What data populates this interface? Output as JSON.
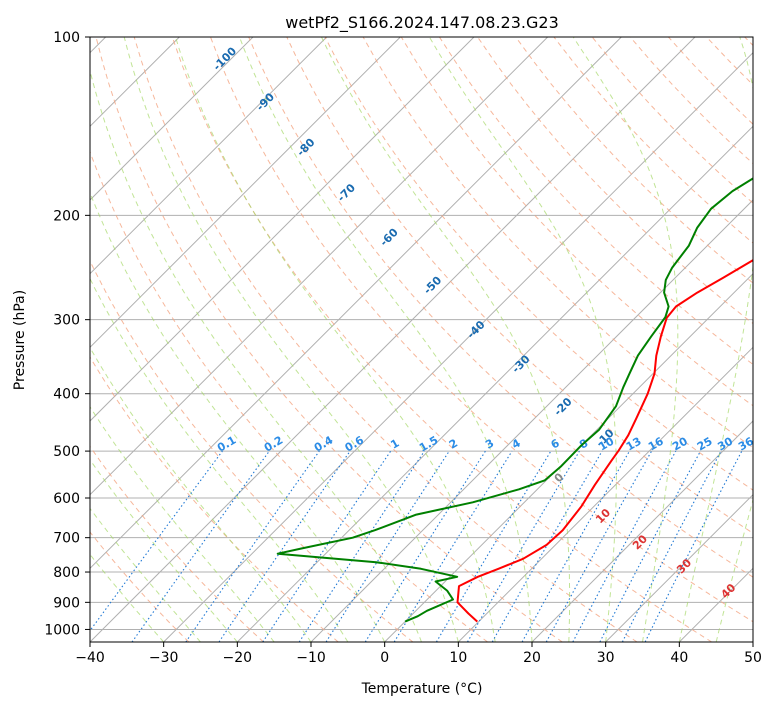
{
  "chart_data": {
    "type": "line",
    "title": "wetPf2_S166.2024.147.08.23.G23",
    "xlabel": "Temperature (°C)",
    "ylabel": "Pressure (hPa)",
    "xlim": [
      -40,
      50
    ],
    "ylim": [
      1050,
      100
    ],
    "y_scale": "log",
    "x_ticks": [
      -40,
      -30,
      -20,
      -10,
      0,
      10,
      20,
      30,
      40,
      50
    ],
    "y_ticks": [
      100,
      200,
      300,
      400,
      500,
      600,
      700,
      800,
      900,
      1000
    ],
    "grid": true,
    "series": [
      {
        "color": "#ff0000",
        "points": [
          [
            9.8,
            970
          ],
          [
            7.5,
            940
          ],
          [
            4.5,
            900
          ],
          [
            2.5,
            845
          ],
          [
            3.8,
            815
          ],
          [
            5.5,
            790
          ],
          [
            7.5,
            760
          ],
          [
            8.8,
            720
          ],
          [
            9.0,
            680
          ],
          [
            8.3,
            620
          ],
          [
            7.2,
            570
          ],
          [
            6.2,
            520
          ],
          [
            5.8,
            500
          ],
          [
            5.0,
            470
          ],
          [
            3.8,
            440
          ],
          [
            2.0,
            400
          ],
          [
            0.2,
            370
          ],
          [
            -2.0,
            345
          ],
          [
            -4.0,
            320
          ],
          [
            -5.7,
            298
          ],
          [
            -6.0,
            285
          ],
          [
            -5.0,
            270
          ],
          [
            -3.5,
            255
          ],
          [
            -1.5,
            235
          ],
          [
            0.5,
            218
          ],
          [
            2.5,
            203
          ],
          [
            4.2,
            192
          ],
          [
            6.0,
            180
          ],
          [
            8.0,
            170
          ],
          [
            9.8,
            160
          ],
          [
            11.5,
            150
          ],
          [
            13.2,
            140
          ],
          [
            15.0,
            130
          ],
          [
            17.0,
            120
          ],
          [
            19.5,
            110
          ],
          [
            22.0,
            100
          ]
        ]
      },
      {
        "color": "#008000",
        "points": [
          [
            0.0,
            970
          ],
          [
            1.0,
            950
          ],
          [
            1.5,
            930
          ],
          [
            3.5,
            890
          ],
          [
            1.5,
            860
          ],
          [
            -1.3,
            830
          ],
          [
            1.0,
            815
          ],
          [
            -5.0,
            790
          ],
          [
            -12.0,
            770
          ],
          [
            -26.5,
            745
          ],
          [
            -24.0,
            730
          ],
          [
            -18.5,
            700
          ],
          [
            -16.5,
            680
          ],
          [
            -13.0,
            640
          ],
          [
            -7.0,
            610
          ],
          [
            -2.5,
            580
          ],
          [
            -0.2,
            560
          ],
          [
            0.1,
            530
          ],
          [
            0.0,
            490
          ],
          [
            0.3,
            460
          ],
          [
            -0.6,
            420
          ],
          [
            -2.2,
            390
          ],
          [
            -3.2,
            370
          ],
          [
            -4.5,
            345
          ],
          [
            -5.3,
            320
          ],
          [
            -6.0,
            297
          ],
          [
            -7.0,
            285
          ],
          [
            -9.5,
            270
          ],
          [
            -11.0,
            257
          ],
          [
            -11.8,
            245
          ],
          [
            -12.5,
            225
          ],
          [
            -13.8,
            210
          ],
          [
            -14.5,
            195
          ],
          [
            -14.0,
            182
          ],
          [
            -12.5,
            170
          ],
          [
            -11.8,
            158
          ],
          [
            -11.0,
            145
          ],
          [
            -9.5,
            133
          ],
          [
            -7.0,
            122
          ],
          [
            -4.0,
            112
          ],
          [
            0.0,
            100
          ]
        ]
      }
    ],
    "skew_isotherm_labels": [
      "-100",
      "-90",
      "-80",
      "-70",
      "-60",
      "-50",
      "-40",
      "-30",
      "-20",
      "-10"
    ],
    "mixing_ratio_labels": [
      "0.1",
      "0.2",
      "0.4",
      "0.6",
      "1",
      "1.5",
      "2",
      "3",
      "4",
      "6",
      "8",
      "10",
      "13",
      "16",
      "20",
      "25",
      "30",
      "36"
    ],
    "moist_adiabat_labels": [
      "0",
      "10",
      "20",
      "30",
      "40"
    ]
  }
}
